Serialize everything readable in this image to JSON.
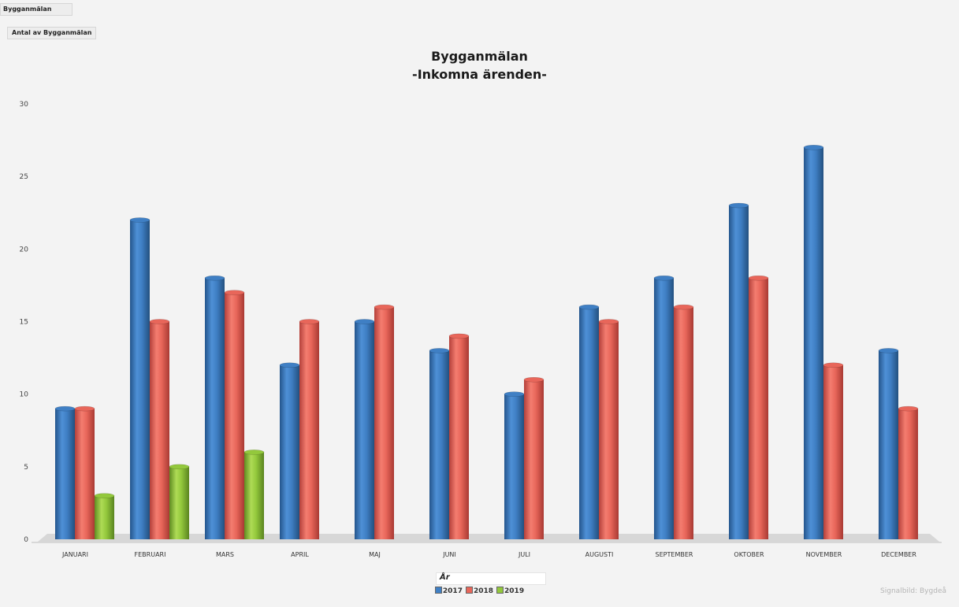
{
  "pivot": {
    "report_filter": "Bygganmälan",
    "values_field": "Antal av Bygganmälan"
  },
  "chart_data": {
    "type": "bar",
    "title": "Bygganmälan",
    "subtitle": "-Inkomna ärenden-",
    "xlabel": "År",
    "ylabel": "",
    "ylim": [
      0,
      30
    ],
    "yticks": [
      0,
      5,
      10,
      15,
      20,
      25,
      30
    ],
    "grid": false,
    "legend_position": "bottom",
    "categories": [
      "JANUARI",
      "FEBRUARI",
      "MARS",
      "APRIL",
      "MAJ",
      "JUNI",
      "JULI",
      "AUGUSTI",
      "SEPTEMBER",
      "OKTOBER",
      "NOVEMBER",
      "DECEMBER"
    ],
    "series": [
      {
        "name": "2017",
        "color": "#3f7fc4",
        "values": [
          9,
          22,
          18,
          12,
          15,
          13,
          10,
          16,
          18,
          23,
          27,
          13
        ]
      },
      {
        "name": "2018",
        "color": "#e8665a",
        "values": [
          9,
          15,
          17,
          15,
          16,
          14,
          11,
          15,
          16,
          18,
          12,
          9
        ]
      },
      {
        "name": "2019",
        "color": "#93c83c",
        "values": [
          3,
          5,
          6,
          null,
          null,
          null,
          null,
          null,
          null,
          null,
          null,
          null
        ]
      }
    ]
  },
  "footer_note": "Signalbild: Bygdeå"
}
